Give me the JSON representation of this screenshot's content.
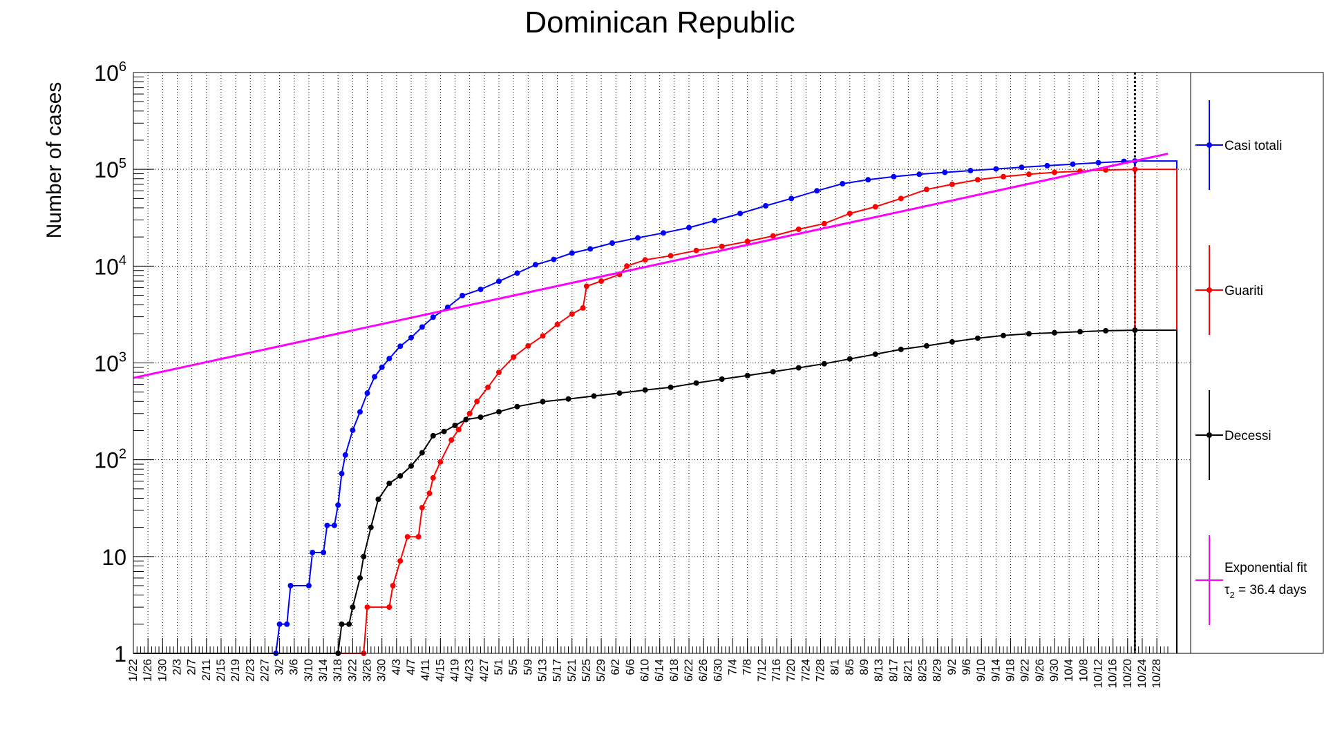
{
  "chart_data": {
    "type": "line",
    "title": "Dominican Republic",
    "xlabel": "",
    "ylabel": "Number of cases",
    "yscale": "log",
    "ylim": [
      1,
      1000000
    ],
    "grid": true,
    "legend_position": "right",
    "y_tick_labels": [
      {
        "base": "1",
        "exp": ""
      },
      {
        "base": "10",
        "exp": ""
      },
      {
        "base": "10",
        "exp": "2"
      },
      {
        "base": "10",
        "exp": "3"
      },
      {
        "base": "10",
        "exp": "4"
      },
      {
        "base": "10",
        "exp": "5"
      },
      {
        "base": "10",
        "exp": "6"
      }
    ],
    "x_range_dates": [
      "2020-01-22",
      "2020-10-31"
    ],
    "x_tick_labels": [
      "1/22",
      "1/26",
      "1/30",
      "2/3",
      "2/7",
      "2/11",
      "2/15",
      "2/19",
      "2/23",
      "2/27",
      "3/2",
      "3/6",
      "3/10",
      "3/14",
      "3/18",
      "3/22",
      "3/26",
      "3/30",
      "4/3",
      "4/7",
      "4/11",
      "4/15",
      "4/19",
      "4/23",
      "4/27",
      "5/1",
      "5/5",
      "5/9",
      "5/13",
      "5/17",
      "5/21",
      "5/25",
      "5/29",
      "6/2",
      "6/6",
      "6/10",
      "6/14",
      "6/18",
      "6/22",
      "6/26",
      "6/30",
      "7/4",
      "7/8",
      "7/12",
      "7/16",
      "7/20",
      "7/24",
      "7/28",
      "8/1",
      "8/5",
      "8/9",
      "8/13",
      "8/17",
      "8/21",
      "8/25",
      "8/29",
      "9/2",
      "9/6",
      "9/10",
      "9/14",
      "9/18",
      "9/22",
      "9/26",
      "9/30",
      "10/4",
      "10/8",
      "10/12",
      "10/16",
      "10/20",
      "10/24",
      "10/28"
    ],
    "vertical_marker_date": "2020-10-22",
    "series": [
      {
        "name": "Casi totali",
        "color": "#0000ff",
        "points": [
          [
            "2020-03-01",
            1
          ],
          [
            "2020-03-02",
            2
          ],
          [
            "2020-03-04",
            2
          ],
          [
            "2020-03-05",
            5
          ],
          [
            "2020-03-10",
            5
          ],
          [
            "2020-03-11",
            11
          ],
          [
            "2020-03-14",
            11
          ],
          [
            "2020-03-15",
            21
          ],
          [
            "2020-03-17",
            21
          ],
          [
            "2020-03-18",
            34
          ],
          [
            "2020-03-19",
            72
          ],
          [
            "2020-03-20",
            112
          ],
          [
            "2020-03-22",
            202
          ],
          [
            "2020-03-24",
            312
          ],
          [
            "2020-03-26",
            488
          ],
          [
            "2020-03-28",
            719
          ],
          [
            "2020-03-30",
            901
          ],
          [
            "2020-04-01",
            1109
          ],
          [
            "2020-04-04",
            1488
          ],
          [
            "2020-04-07",
            1828
          ],
          [
            "2020-04-10",
            2349
          ],
          [
            "2020-04-13",
            2967
          ],
          [
            "2020-04-17",
            3755
          ],
          [
            "2020-04-21",
            4964
          ],
          [
            "2020-04-26",
            5749
          ],
          [
            "2020-05-01",
            6972
          ],
          [
            "2020-05-06",
            8480
          ],
          [
            "2020-05-11",
            10347
          ],
          [
            "2020-05-16",
            11739
          ],
          [
            "2020-05-21",
            13657
          ],
          [
            "2020-05-26",
            15073
          ],
          [
            "2020-06-01",
            17285
          ],
          [
            "2020-06-08",
            19600
          ],
          [
            "2020-06-15",
            22000
          ],
          [
            "2020-06-22",
            25000
          ],
          [
            "2020-06-29",
            29500
          ],
          [
            "2020-07-06",
            35000
          ],
          [
            "2020-07-13",
            42000
          ],
          [
            "2020-07-20",
            50000
          ],
          [
            "2020-07-27",
            60000
          ],
          [
            "2020-08-03",
            71000
          ],
          [
            "2020-08-10",
            78000
          ],
          [
            "2020-08-17",
            84000
          ],
          [
            "2020-08-24",
            89000
          ],
          [
            "2020-08-31",
            93000
          ],
          [
            "2020-09-07",
            97000
          ],
          [
            "2020-09-14",
            101000
          ],
          [
            "2020-09-21",
            105000
          ],
          [
            "2020-09-28",
            109000
          ],
          [
            "2020-10-05",
            113000
          ],
          [
            "2020-10-12",
            117000
          ],
          [
            "2020-10-19",
            121000
          ],
          [
            "2020-10-22",
            122000
          ]
        ]
      },
      {
        "name": "Guariti",
        "color": "#ff0000",
        "points": [
          [
            "2020-03-25",
            1
          ],
          [
            "2020-03-26",
            3
          ],
          [
            "2020-04-01",
            3
          ],
          [
            "2020-04-02",
            5
          ],
          [
            "2020-04-04",
            9
          ],
          [
            "2020-04-06",
            16
          ],
          [
            "2020-04-09",
            16
          ],
          [
            "2020-04-10",
            32
          ],
          [
            "2020-04-12",
            45
          ],
          [
            "2020-04-13",
            65
          ],
          [
            "2020-04-15",
            95
          ],
          [
            "2020-04-18",
            160
          ],
          [
            "2020-04-20",
            205
          ],
          [
            "2020-04-23",
            300
          ],
          [
            "2020-04-25",
            400
          ],
          [
            "2020-04-28",
            560
          ],
          [
            "2020-05-01",
            800
          ],
          [
            "2020-05-05",
            1150
          ],
          [
            "2020-05-09",
            1500
          ],
          [
            "2020-05-13",
            1900
          ],
          [
            "2020-05-17",
            2500
          ],
          [
            "2020-05-21",
            3200
          ],
          [
            "2020-05-24",
            3700
          ],
          [
            "2020-05-25",
            6200
          ],
          [
            "2020-05-29",
            7000
          ],
          [
            "2020-06-03",
            8200
          ],
          [
            "2020-06-05",
            10000
          ],
          [
            "2020-06-10",
            11600
          ],
          [
            "2020-06-17",
            12800
          ],
          [
            "2020-06-24",
            14500
          ],
          [
            "2020-07-01",
            16000
          ],
          [
            "2020-07-08",
            18000
          ],
          [
            "2020-07-15",
            20500
          ],
          [
            "2020-07-22",
            24000
          ],
          [
            "2020-07-29",
            27500
          ],
          [
            "2020-08-05",
            35000
          ],
          [
            "2020-08-12",
            41000
          ],
          [
            "2020-08-19",
            50000
          ],
          [
            "2020-08-26",
            62000
          ],
          [
            "2020-09-02",
            70000
          ],
          [
            "2020-09-09",
            78000
          ],
          [
            "2020-09-16",
            84000
          ],
          [
            "2020-09-23",
            89000
          ],
          [
            "2020-09-30",
            93000
          ],
          [
            "2020-10-07",
            96000
          ],
          [
            "2020-10-14",
            98500
          ],
          [
            "2020-10-22",
            100000
          ]
        ]
      },
      {
        "name": "Decessi",
        "color": "#000000",
        "points": [
          [
            "2020-03-18",
            1
          ],
          [
            "2020-03-19",
            2
          ],
          [
            "2020-03-21",
            2
          ],
          [
            "2020-03-22",
            3
          ],
          [
            "2020-03-24",
            6
          ],
          [
            "2020-03-25",
            10
          ],
          [
            "2020-03-27",
            20
          ],
          [
            "2020-03-29",
            39
          ],
          [
            "2020-04-01",
            57
          ],
          [
            "2020-04-04",
            68
          ],
          [
            "2020-04-07",
            86
          ],
          [
            "2020-04-10",
            118
          ],
          [
            "2020-04-13",
            177
          ],
          [
            "2020-04-16",
            196
          ],
          [
            "2020-04-19",
            226
          ],
          [
            "2020-04-22",
            260
          ],
          [
            "2020-04-26",
            275
          ],
          [
            "2020-05-01",
            313
          ],
          [
            "2020-05-06",
            354
          ],
          [
            "2020-05-13",
            398
          ],
          [
            "2020-05-20",
            424
          ],
          [
            "2020-05-27",
            455
          ],
          [
            "2020-06-03",
            488
          ],
          [
            "2020-06-10",
            525
          ],
          [
            "2020-06-17",
            560
          ],
          [
            "2020-06-24",
            620
          ],
          [
            "2020-07-01",
            680
          ],
          [
            "2020-07-08",
            740
          ],
          [
            "2020-07-15",
            810
          ],
          [
            "2020-07-22",
            890
          ],
          [
            "2020-07-29",
            980
          ],
          [
            "2020-08-05",
            1100
          ],
          [
            "2020-08-12",
            1230
          ],
          [
            "2020-08-19",
            1380
          ],
          [
            "2020-08-26",
            1500
          ],
          [
            "2020-09-02",
            1650
          ],
          [
            "2020-09-09",
            1800
          ],
          [
            "2020-09-16",
            1920
          ],
          [
            "2020-09-23",
            2000
          ],
          [
            "2020-09-30",
            2050
          ],
          [
            "2020-10-07",
            2100
          ],
          [
            "2020-10-14",
            2150
          ],
          [
            "2020-10-22",
            2180
          ]
        ]
      },
      {
        "name": "Exponential fit",
        "color": "#ff00ff",
        "subtitle": "τ",
        "subtitle_sub": "2",
        "subtitle_rest": " = 36.4 days",
        "points": [
          [
            "2020-01-22",
            700
          ],
          [
            "2020-10-31",
            145000
          ]
        ]
      }
    ]
  }
}
